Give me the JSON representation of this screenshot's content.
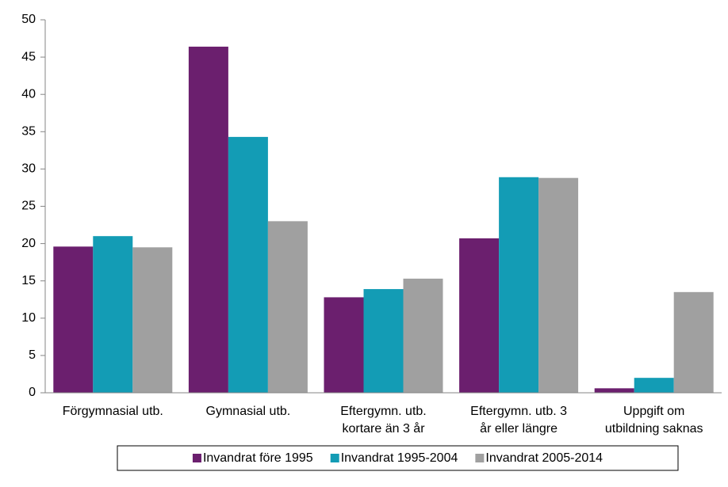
{
  "chart_data": {
    "type": "bar",
    "categories": [
      "Förgymnasial utb.",
      "Gymnasial utb.",
      "Eftergymn. utb.\nkortare än 3 år",
      "Eftergymn. utb. 3\når eller längre",
      "Uppgift om\nutbildning saknas"
    ],
    "series": [
      {
        "name": "Invandrat före 1995",
        "color": "#6b1f6e",
        "values": [
          19.6,
          46.4,
          12.8,
          20.7,
          0.6
        ]
      },
      {
        "name": "Invandrat 1995-2004",
        "color": "#139cb5",
        "values": [
          21.0,
          34.3,
          13.9,
          28.9,
          2.0
        ]
      },
      {
        "name": "Invandrat 2005-2014",
        "color": "#a0a0a0",
        "values": [
          19.5,
          23.0,
          15.3,
          28.8,
          13.5
        ]
      }
    ],
    "ylim": [
      0,
      50
    ],
    "yticks": [
      0,
      5,
      10,
      15,
      20,
      25,
      30,
      35,
      40,
      45,
      50
    ],
    "grid": false,
    "legend": "bottom"
  }
}
